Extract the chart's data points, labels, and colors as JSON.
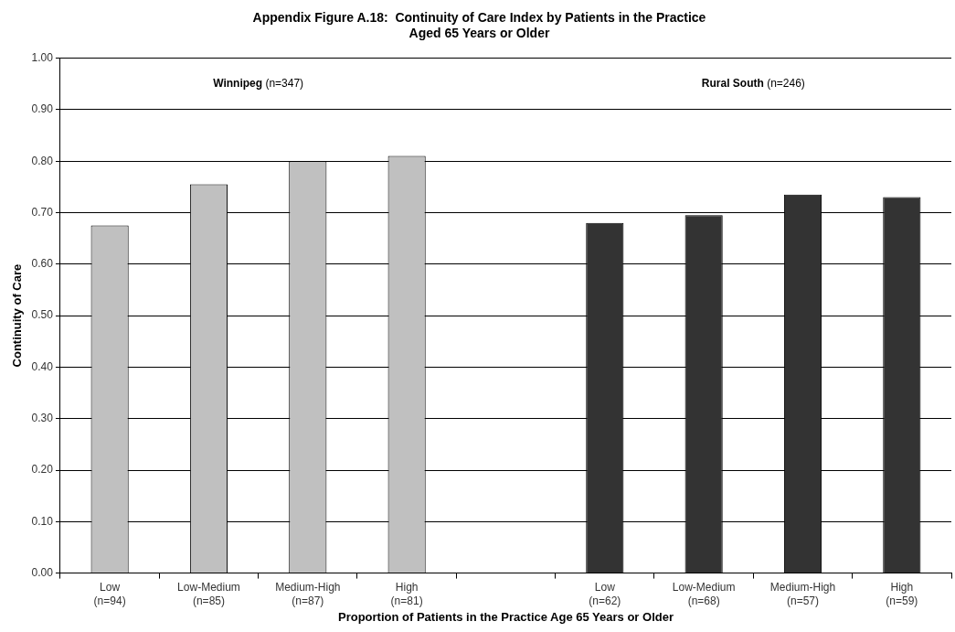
{
  "chart_data": {
    "type": "bar",
    "title": "Appendix Figure A.18:  Continuity of Care Index by Patients in the Practice\nAged 65 Years or Older",
    "xlabel": "Proportion of Patients in the Practice Age 65 Years or Older",
    "ylabel": "Continuity of Care",
    "categories": [
      "Low\n(n=94)",
      "Low-Medium\n(n=85)",
      "Medium-High\n(n=87)",
      "High\n(n=81)",
      null,
      "Low\n(n=62)",
      "Low-Medium\n(n=68)",
      "Medium-High\n(n=57)",
      "High\n(n=59)"
    ],
    "values": [
      0.675,
      0.755,
      0.8,
      0.81,
      null,
      0.68,
      0.695,
      0.735,
      0.73
    ],
    "colors": [
      "#c0c0c0",
      "#c0c0c0",
      "#c0c0c0",
      "#c0c0c0",
      "#c0c0c0",
      "#333333",
      "#333333",
      "#333333",
      "#333333"
    ],
    "ylim": [
      0,
      1
    ],
    "yticks": [
      {
        "value": 0,
        "label": "0.00"
      },
      {
        "value": 0.1,
        "label": "0.10"
      },
      {
        "value": 0.2,
        "label": "0.20"
      },
      {
        "value": 0.3,
        "label": "0.30"
      },
      {
        "value": 0.4,
        "label": "0.40"
      },
      {
        "value": 0.5,
        "label": "0.50"
      },
      {
        "value": 0.6,
        "label": "0.60"
      },
      {
        "value": 0.7,
        "label": "0.70"
      },
      {
        "value": 0.8,
        "label": "0.80"
      },
      {
        "value": 0.9,
        "label": "0.90"
      },
      {
        "value": 1,
        "label": "1.00"
      }
    ],
    "grid": "y",
    "legend": false,
    "annotations": [
      "Winnipeg (n=347)",
      "Rural South (n=246)"
    ]
  }
}
